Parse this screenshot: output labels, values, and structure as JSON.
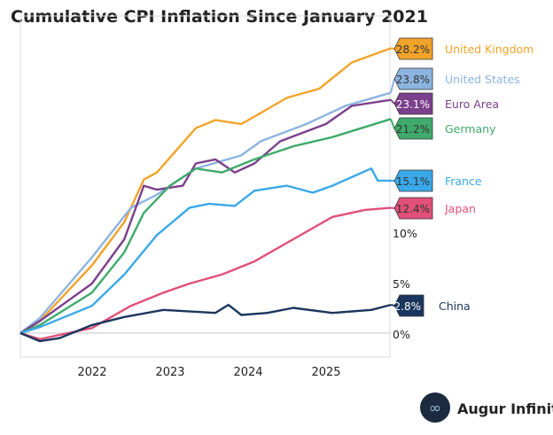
{
  "chart_data": {
    "type": "line",
    "title": "Cumulative CPI Inflation Since January 2021",
    "xlabel": "",
    "ylabel": "",
    "x_ticks": [
      "2022",
      "2023",
      "2024",
      "2025"
    ],
    "y_ticks": [
      "0%",
      "5%",
      "10%"
    ],
    "y_tick_values": [
      0,
      5,
      10
    ],
    "ylim": [
      -2.3,
      31.5
    ],
    "xlim": [
      "2021-01",
      "2025-10"
    ],
    "grid": "zero line only",
    "legend": "right, end-of-line labels",
    "series": [
      {
        "name": "United Kingdom",
        "label": "28.2%",
        "color": "#F2A32A",
        "label_text_color": "#333333",
        "points": [
          [
            "2021-01",
            0
          ],
          [
            "2021-04",
            1.2
          ],
          [
            "2021-12",
            6.7
          ],
          [
            "2022-05",
            11
          ],
          [
            "2022-08",
            15.2
          ],
          [
            "2022-10",
            15.9
          ],
          [
            "2023-04",
            20.3
          ],
          [
            "2023-07",
            21.1
          ],
          [
            "2023-11",
            20.7
          ],
          [
            "2024-02",
            21.8
          ],
          [
            "2024-06",
            23.3
          ],
          [
            "2024-11",
            24.2
          ],
          [
            "2025-04",
            26.8
          ],
          [
            "2025-10",
            28.2
          ]
        ]
      },
      {
        "name": "United States",
        "label": "23.8%",
        "color": "#8DB4E0",
        "label_text_color": "#333333",
        "points": [
          [
            "2021-01",
            0
          ],
          [
            "2021-04",
            1.5
          ],
          [
            "2021-12",
            7.5
          ],
          [
            "2022-06",
            12.4
          ],
          [
            "2022-10",
            13.7
          ],
          [
            "2023-04",
            16.3
          ],
          [
            "2023-11",
            17.6
          ],
          [
            "2024-02",
            19
          ],
          [
            "2024-09",
            20.7
          ],
          [
            "2025-03",
            22.5
          ],
          [
            "2025-10",
            23.8
          ]
        ]
      },
      {
        "name": "Euro Area",
        "label": "23.1%",
        "color": "#7B3F8C",
        "label_text_color": "#ffffff",
        "points": [
          [
            "2021-01",
            0
          ],
          [
            "2021-04",
            1.2
          ],
          [
            "2021-12",
            4.9
          ],
          [
            "2022-05",
            9.3
          ],
          [
            "2022-08",
            14.6
          ],
          [
            "2022-10",
            14.2
          ],
          [
            "2023-02",
            14.6
          ],
          [
            "2023-04",
            16.8
          ],
          [
            "2023-07",
            17.2
          ],
          [
            "2023-10",
            15.9
          ],
          [
            "2024-01",
            16.8
          ],
          [
            "2024-05",
            19
          ],
          [
            "2024-12",
            20.7
          ],
          [
            "2025-04",
            22.5
          ],
          [
            "2025-10",
            23.1
          ]
        ]
      },
      {
        "name": "Germany",
        "label": "21.2%",
        "color": "#3FAA6B",
        "label_text_color": "#333333",
        "points": [
          [
            "2021-01",
            0
          ],
          [
            "2021-04",
            0.8
          ],
          [
            "2021-12",
            4
          ],
          [
            "2022-05",
            8
          ],
          [
            "2022-08",
            11.9
          ],
          [
            "2022-12",
            14.6
          ],
          [
            "2023-04",
            16.3
          ],
          [
            "2023-08",
            15.9
          ],
          [
            "2024-01",
            17.2
          ],
          [
            "2024-07",
            18.5
          ],
          [
            "2025-01",
            19.4
          ],
          [
            "2025-10",
            21.2
          ]
        ]
      },
      {
        "name": "France",
        "label": "15.1%",
        "color": "#3AA8E8",
        "label_text_color": "#333333",
        "points": [
          [
            "2021-01",
            0
          ],
          [
            "2021-04",
            0.6
          ],
          [
            "2021-12",
            2.7
          ],
          [
            "2022-05",
            5.8
          ],
          [
            "2022-10",
            9.7
          ],
          [
            "2023-03",
            12.4
          ],
          [
            "2023-06",
            12.8
          ],
          [
            "2023-10",
            12.6
          ],
          [
            "2024-01",
            14.1
          ],
          [
            "2024-06",
            14.6
          ],
          [
            "2024-10",
            13.9
          ],
          [
            "2025-01",
            14.6
          ],
          [
            "2025-07",
            16.3
          ],
          [
            "2025-08",
            15.1
          ],
          [
            "2025-10",
            15.1
          ]
        ]
      },
      {
        "name": "Japan",
        "label": "12.4%",
        "color": "#E0507A",
        "label_text_color": "#333333",
        "points": [
          [
            "2021-01",
            0
          ],
          [
            "2021-04",
            -0.6
          ],
          [
            "2021-12",
            0.5
          ],
          [
            "2022-06",
            2.7
          ],
          [
            "2022-11",
            4
          ],
          [
            "2023-03",
            4.9
          ],
          [
            "2023-08",
            5.8
          ],
          [
            "2024-01",
            7.1
          ],
          [
            "2024-07",
            9.3
          ],
          [
            "2025-01",
            11.5
          ],
          [
            "2025-06",
            12.2
          ],
          [
            "2025-10",
            12.4
          ]
        ]
      },
      {
        "name": "China",
        "label": "2.8%",
        "color": "#1B365D",
        "label_text_color": "#ffffff",
        "points": [
          [
            "2021-01",
            0
          ],
          [
            "2021-04",
            -0.8
          ],
          [
            "2021-07",
            -0.5
          ],
          [
            "2021-12",
            0.8
          ],
          [
            "2022-05",
            1.6
          ],
          [
            "2022-11",
            2.3
          ],
          [
            "2023-07",
            2.0
          ],
          [
            "2023-09",
            2.8
          ],
          [
            "2023-11",
            1.8
          ],
          [
            "2024-03",
            2.0
          ],
          [
            "2024-07",
            2.5
          ],
          [
            "2025-01",
            2.0
          ],
          [
            "2025-07",
            2.3
          ],
          [
            "2025-10",
            2.8
          ]
        ]
      }
    ]
  },
  "logo": {
    "text": "Augur Infinity"
  }
}
